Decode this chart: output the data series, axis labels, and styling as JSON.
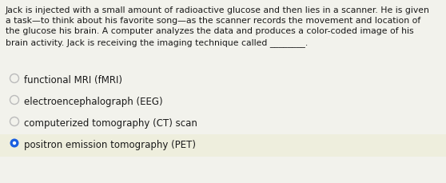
{
  "background_color": "#f2f2ec",
  "question_text": [
    "Jack is injected with a small amount of radioactive glucose and then lies in a scanner. He is given",
    "a task—to think about his favorite song—as the scanner records the movement and location of",
    "the glucose his brain. A computer analyzes the data and produces a color-coded image of his",
    "brain activity. Jack is receiving the imaging technique called ________."
  ],
  "options": [
    {
      "text": "functional MRI (fMRI)",
      "selected": false
    },
    {
      "text": "electroencephalograph (EEG)",
      "selected": false
    },
    {
      "text": "computerized tomography (CT) scan",
      "selected": false
    },
    {
      "text": "positron emission tomography (PET)",
      "selected": true
    }
  ],
  "question_font_size": 7.8,
  "option_font_size": 8.5,
  "text_color": "#1a1a1a",
  "radio_unselected_color": "#bbbbbb",
  "radio_selected_color": "#1a5fe0",
  "highlight_bg_color": "#eeeedd"
}
